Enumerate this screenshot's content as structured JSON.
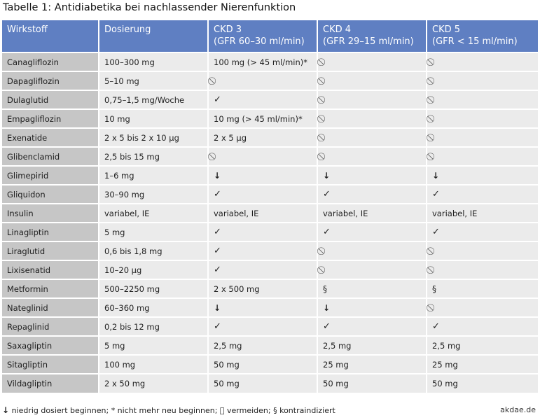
{
  "title": "Tabelle 1: Antidiabetika bei nachlassender Nierenfunktion",
  "symbols": {
    "check": "✓",
    "down": "↓",
    "avoid": "⃠",
    "section": "§"
  },
  "table": {
    "headers": [
      {
        "line1": "Wirkstoff",
        "line2": ""
      },
      {
        "line1": "Dosierung",
        "line2": ""
      },
      {
        "line1": "CKD 3",
        "line2": "(GFR 60–30 ml/min)"
      },
      {
        "line1": "CKD 4",
        "line2": "(GFR 29–15 ml/min)"
      },
      {
        "line1": "CKD 5",
        "line2": "(GFR < 15 ml/min)"
      }
    ],
    "rows": [
      [
        "Canagliflozin",
        "100–300 mg",
        "100 mg (> 45 ml/min)*",
        "⃠",
        "⃠"
      ],
      [
        "Dapagliflozin",
        "5–10 mg",
        "⃠",
        "⃠",
        "⃠"
      ],
      [
        "Dulaglutid",
        "0,75–1,5 mg/Woche",
        "✓",
        "⃠",
        "⃠"
      ],
      [
        "Empagliflozin",
        "10 mg",
        "10 mg (> 45 ml/min)*",
        "⃠",
        "⃠"
      ],
      [
        "Exenatide",
        "2 x 5 bis 2 x 10 µg",
        "2 x 5 µg",
        "⃠",
        "⃠"
      ],
      [
        "Glibenclamid",
        "2,5 bis 15 mg",
        "⃠",
        "⃠",
        "⃠"
      ],
      [
        "Glimepirid",
        "1–6 mg",
        "↓",
        "↓",
        "↓"
      ],
      [
        "Gliquidon",
        "30–90 mg",
        "✓",
        "✓",
        "✓"
      ],
      [
        "Insulin",
        "variabel, IE",
        "variabel, IE",
        "variabel, IE",
        "variabel, IE"
      ],
      [
        "Linagliptin",
        "5 mg",
        "✓",
        "✓",
        "✓"
      ],
      [
        "Liraglutid",
        "0,6 bis 1,8 mg",
        "✓",
        "⃠",
        "⃠"
      ],
      [
        "Lixisenatid",
        "10–20 µg",
        "✓",
        "⃠",
        "⃠"
      ],
      [
        "Metformin",
        "500–2250 mg",
        "2 x 500 mg",
        "§",
        "§"
      ],
      [
        "Nateglinid",
        "60–360 mg",
        "↓",
        "↓",
        "⃠"
      ],
      [
        "Repaglinid",
        "0,2 bis 12 mg",
        "✓",
        "✓",
        "✓"
      ],
      [
        "Saxagliptin",
        "5 mg",
        "2,5 mg",
        "2,5 mg",
        "2,5 mg"
      ],
      [
        "Sitagliptin",
        "100 mg",
        "50 mg",
        "25 mg",
        "25 mg"
      ],
      [
        "Vildagliptin",
        "2 x 50 mg",
        "50 mg",
        "50 mg",
        "50 mg"
      ]
    ]
  },
  "legend": {
    "down_text": "niedrig dosiert beginnen;",
    "star_text": "* nicht mehr neu beginnen;",
    "avoid_text": "vermeiden;",
    "section_text": "§ kontraindiziert"
  },
  "source": "akdae.de",
  "colors": {
    "header_bg": "#5f7fc2",
    "name_col_bg": "#c6c6c6",
    "cell_bg": "#ebebeb"
  }
}
